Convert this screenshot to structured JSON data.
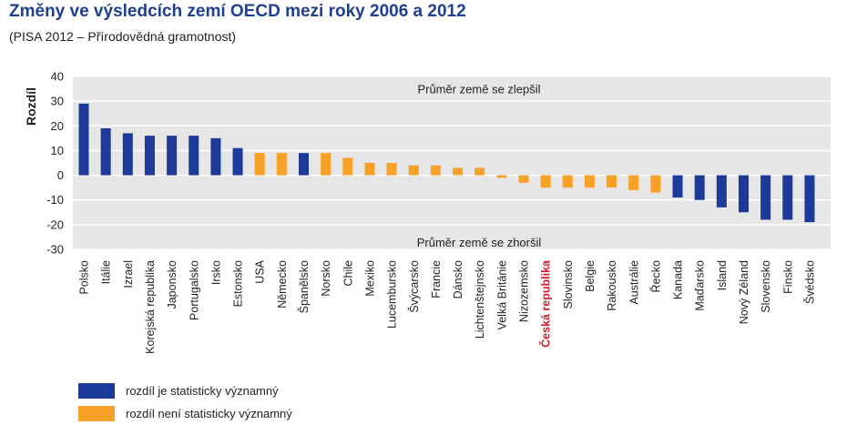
{
  "title": "Změny ve výsledcích zemí OECD mezi roky 2006 a 2012",
  "subtitle": "(PISA 2012 – Přírodovědná gramotnost)",
  "colors": {
    "significant": "#1b3a9a",
    "not_significant": "#f7a128",
    "highlight_label": "#d0202e",
    "plot_bg": "#e6e6e6",
    "grid": "#ffffff"
  },
  "legend": {
    "significant": "rozdíl je statisticky významný",
    "not_significant": "rozdíl není statisticky významný"
  },
  "chart_data": {
    "type": "bar",
    "ylabel": "Rozdíl",
    "ylim": [
      -30,
      40
    ],
    "yticks": [
      40,
      30,
      20,
      10,
      0,
      -10,
      -20,
      -30
    ],
    "grid": true,
    "annotations": {
      "top": "Průměr země se zlepšil",
      "bottom": "Průměr země se zhoršil"
    },
    "highlight": "Česká republika",
    "categories": [
      "Polsko",
      "Itálie",
      "Izrael",
      "Korejská republika",
      "Japonsko",
      "Portugalsko",
      "Irsko",
      "Estonsko",
      "USA",
      "Německo",
      "Španělsko",
      "Norsko",
      "Chile",
      "Mexiko",
      "Lucembursko",
      "Švýcarsko",
      "Francie",
      "Dánsko",
      "Lichtenštejnsko",
      "Velká Británie",
      "Nizozemsko",
      "Česká republika",
      "Slovinsko",
      "Belgie",
      "Rakousko",
      "Austrálie",
      "Řecko",
      "Kanada",
      "Maďarsko",
      "Island",
      "Nový Zéland",
      "Slovensko",
      "Finsko",
      "Švédsko"
    ],
    "values": [
      29,
      19,
      17,
      16,
      16,
      16,
      15,
      11,
      9,
      9,
      9,
      9,
      7,
      5,
      5,
      4,
      4,
      3,
      3,
      -1,
      -3,
      -5,
      -5,
      -5,
      -5,
      -6,
      -7,
      -9,
      -10,
      -13,
      -15,
      -18,
      -18,
      -19
    ],
    "significant": [
      true,
      true,
      true,
      true,
      true,
      true,
      true,
      true,
      false,
      false,
      true,
      false,
      false,
      false,
      false,
      false,
      false,
      false,
      false,
      false,
      false,
      false,
      false,
      false,
      false,
      false,
      false,
      true,
      true,
      true,
      true,
      true,
      true,
      true
    ]
  }
}
